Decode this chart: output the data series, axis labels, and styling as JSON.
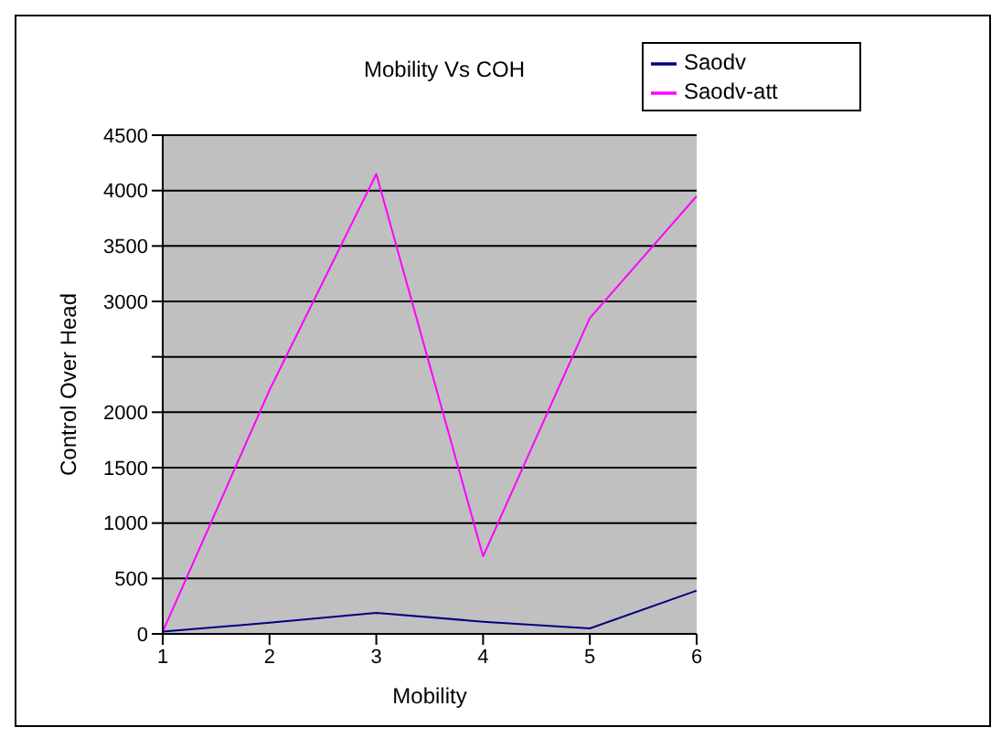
{
  "chart_data": {
    "type": "line",
    "title": "Mobility Vs COH",
    "xlabel": "Mobility",
    "ylabel": "Control Over Head",
    "categories": [
      "1",
      "2",
      "3",
      "4",
      "5",
      "6"
    ],
    "series": [
      {
        "name": "Saodv",
        "color": "#000080",
        "values": [
          20,
          100,
          190,
          110,
          50,
          390
        ]
      },
      {
        "name": "Saodv-att",
        "color": "#ff00ff",
        "values": [
          20,
          2200,
          4150,
          700,
          2850,
          3950
        ]
      }
    ],
    "ylim": [
      0,
      4500
    ],
    "yticks": [
      0,
      500,
      1000,
      1500,
      2000,
      {
        "value": 2500,
        "label": null
      },
      3000,
      3500,
      4000,
      4500
    ],
    "grid": "y",
    "legend": "top right",
    "marker": "none",
    "line_style": "solid"
  }
}
